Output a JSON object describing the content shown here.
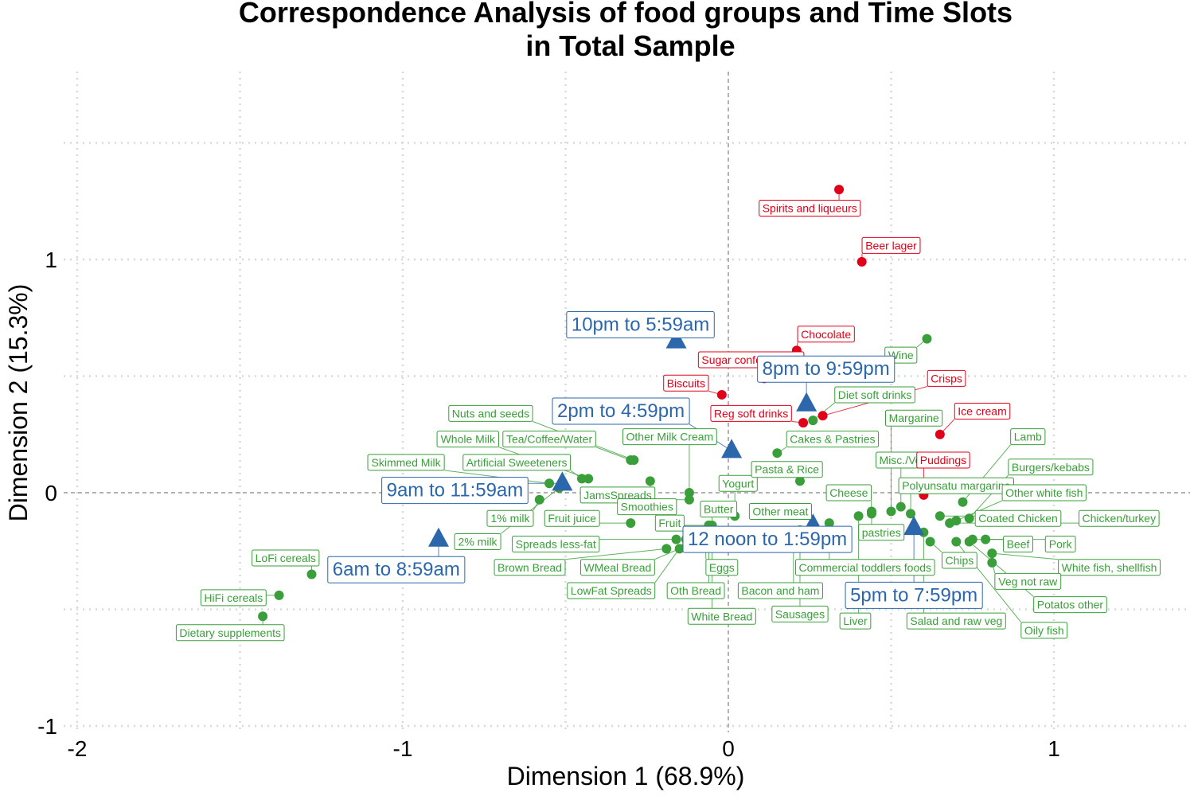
{
  "chart_data": {
    "type": "scatter",
    "title_lines": [
      "Correspondence Analysis of food groups and Time Slots",
      "in Total Sample"
    ],
    "xlabel": "Dimension 1 (68.9%)",
    "ylabel": "Dimension 2 (15.3%)",
    "xlim": [
      -2.05,
      1.42
    ],
    "ylim": [
      -1.04,
      1.64
    ],
    "x_ticks": [
      -2,
      -1,
      0,
      1
    ],
    "x_tick_labels": [
      "-2",
      "-1",
      "0",
      "1"
    ],
    "y_ticks": [
      -1,
      0,
      1
    ],
    "y_tick_labels": [
      "-1",
      "0",
      "1"
    ],
    "x_minor_grid": [
      -2,
      -1.5,
      -1,
      -0.5,
      0.5,
      1,
      1.5
    ],
    "y_minor_grid": [
      -0.5,
      0.5,
      1,
      1.5
    ],
    "colors": {
      "green": "#3a9e3a",
      "red": "#e0001a",
      "blue": "#2c66ab",
      "grid": "#d8d8d8",
      "zero": "#666666"
    },
    "series": [
      {
        "group": "green",
        "points": [
          {
            "label": "LoFi cereals",
            "x": -1.28,
            "y": -0.35,
            "lx": -1.36,
            "ly": -0.28
          },
          {
            "label": "HiFi cereals",
            "x": -1.38,
            "y": -0.44,
            "lx": -1.52,
            "ly": -0.45
          },
          {
            "label": "Dietary supplements",
            "x": -1.43,
            "y": -0.53,
            "lx": -1.53,
            "ly": -0.6
          },
          {
            "label": "Nuts and seeds",
            "x": -0.29,
            "y": 0.14,
            "lx": -0.73,
            "ly": 0.34
          },
          {
            "label": "Whole Milk",
            "x": -0.43,
            "y": 0.06,
            "lx": -0.8,
            "ly": 0.23
          },
          {
            "label": "Tea/Coffee/Water",
            "x": -0.3,
            "y": 0.14,
            "lx": -0.55,
            "ly": 0.23
          },
          {
            "label": "Other Milk Cream",
            "x": -0.12,
            "y": 0.0,
            "lx": -0.18,
            "ly": 0.24
          },
          {
            "label": "Skimmed Milk",
            "x": -0.55,
            "y": 0.04,
            "lx": -0.99,
            "ly": 0.13
          },
          {
            "label": "Artificial Sweeteners",
            "x": -0.45,
            "y": 0.06,
            "lx": -0.65,
            "ly": 0.13
          },
          {
            "label": "JamsSpreads",
            "x": -0.24,
            "y": 0.05,
            "lx": -0.34,
            "ly": -0.01
          },
          {
            "label": "Yogurt",
            "x": 0.02,
            "y": -0.1,
            "lx": 0.03,
            "ly": 0.04
          },
          {
            "label": "Smoothies",
            "x": -0.12,
            "y": -0.03,
            "lx": -0.25,
            "ly": -0.06
          },
          {
            "label": "Butter",
            "x": -0.05,
            "y": -0.14,
            "lx": -0.03,
            "ly": -0.07
          },
          {
            "label": "1% milk",
            "x": -0.58,
            "y": -0.03,
            "lx": -0.67,
            "ly": -0.11
          },
          {
            "label": "Fruit juice",
            "x": -0.3,
            "y": -0.13,
            "lx": -0.48,
            "ly": -0.11
          },
          {
            "label": "Fruit",
            "x": -0.06,
            "y": -0.14,
            "lx": -0.18,
            "ly": -0.13
          },
          {
            "label": "Other meat",
            "x": 0.23,
            "y": -0.09,
            "lx": 0.16,
            "ly": -0.08
          },
          {
            "label": "2% milk",
            "x": -0.52,
            "y": 0.02,
            "lx": -0.77,
            "ly": -0.21
          },
          {
            "label": "Spreads less-fat",
            "x": -0.16,
            "y": -0.2,
            "lx": -0.53,
            "ly": -0.22
          },
          {
            "label": "Brown Bread",
            "x": -0.19,
            "y": -0.24,
            "lx": -0.61,
            "ly": -0.32
          },
          {
            "label": "WMeal Bread",
            "x": -0.15,
            "y": -0.24,
            "lx": -0.34,
            "ly": -0.32
          },
          {
            "label": "LowFat Spreads",
            "x": -0.13,
            "y": -0.2,
            "lx": -0.36,
            "ly": -0.42
          },
          {
            "label": "Eggs",
            "x": -0.07,
            "y": -0.22,
            "lx": -0.02,
            "ly": -0.32
          },
          {
            "label": "Oth Bread",
            "x": -0.06,
            "y": -0.14,
            "lx": -0.1,
            "ly": -0.42
          },
          {
            "label": "White Bread",
            "x": -0.05,
            "y": -0.2,
            "lx": -0.02,
            "ly": -0.53
          },
          {
            "label": "Bacon and ham",
            "x": 0.2,
            "y": -0.23,
            "lx": 0.16,
            "ly": -0.42
          },
          {
            "label": "Sausages",
            "x": 0.22,
            "y": -0.16,
            "lx": 0.22,
            "ly": -0.52
          },
          {
            "label": "Commercial toddlers foods",
            "x": 0.31,
            "y": -0.13,
            "lx": 0.42,
            "ly": -0.32
          },
          {
            "label": "Liver",
            "x": 0.4,
            "y": -0.1,
            "lx": 0.39,
            "ly": -0.55
          },
          {
            "label": "Cheese",
            "x": 0.44,
            "y": -0.09,
            "lx": 0.37,
            "ly": 0.0
          },
          {
            "label": "pastries",
            "x": 0.44,
            "y": -0.08,
            "lx": 0.47,
            "ly": -0.17
          },
          {
            "label": "Wine",
            "x": 0.61,
            "y": 0.66,
            "lx": 0.53,
            "ly": 0.59
          },
          {
            "label": "Diet soft drinks",
            "x": 0.26,
            "y": 0.31,
            "lx": 0.45,
            "ly": 0.42
          },
          {
            "label": "Cakes & Pastries",
            "x": 0.15,
            "y": 0.17,
            "lx": 0.32,
            "ly": 0.23
          },
          {
            "label": "Margarine",
            "x": 0.5,
            "y": -0.08,
            "lx": 0.57,
            "ly": 0.32
          },
          {
            "label": "Pasta & Rice",
            "x": 0.22,
            "y": 0.05,
            "lx": 0.18,
            "ly": 0.1
          },
          {
            "label": "Misc./Vending",
            "x": 0.53,
            "y": -0.06,
            "lx": 0.57,
            "ly": 0.14
          },
          {
            "label": "Polyunsatu margarine",
            "x": 0.56,
            "y": -0.09,
            "lx": 0.7,
            "ly": 0.03
          },
          {
            "label": "Lamb",
            "x": 0.72,
            "y": -0.04,
            "lx": 0.92,
            "ly": 0.24
          },
          {
            "label": "Burgers/kebabs",
            "x": 0.74,
            "y": -0.11,
            "lx": 0.99,
            "ly": 0.11
          },
          {
            "label": "Other white fish",
            "x": 0.7,
            "y": -0.12,
            "lx": 0.97,
            "ly": 0.0
          },
          {
            "label": "Coated Chicken",
            "x": 0.65,
            "y": -0.1,
            "lx": 0.89,
            "ly": -0.11
          },
          {
            "label": "Chicken/turkey",
            "x": 0.68,
            "y": -0.13,
            "lx": 1.2,
            "ly": -0.11
          },
          {
            "label": "Beef",
            "x": 0.75,
            "y": -0.2,
            "lx": 0.89,
            "ly": -0.22
          },
          {
            "label": "Pork",
            "x": 0.79,
            "y": -0.2,
            "lx": 1.02,
            "ly": -0.22
          },
          {
            "label": "Chips",
            "x": 0.62,
            "y": -0.21,
            "lx": 0.71,
            "ly": -0.29
          },
          {
            "label": "White fish, shellfish",
            "x": 0.81,
            "y": -0.26,
            "lx": 1.17,
            "ly": -0.32
          },
          {
            "label": "Veg not raw",
            "x": 0.81,
            "y": -0.3,
            "lx": 0.92,
            "ly": -0.38
          },
          {
            "label": "Potatos other",
            "x": 0.74,
            "y": -0.21,
            "lx": 1.05,
            "ly": -0.48
          },
          {
            "label": "Salad and raw veg",
            "x": 0.6,
            "y": -0.17,
            "lx": 0.7,
            "ly": -0.55
          },
          {
            "label": "Oily fish",
            "x": 0.7,
            "y": -0.21,
            "lx": 0.97,
            "ly": -0.59
          }
        ]
      },
      {
        "group": "red",
        "points": [
          {
            "label": "Spirits and liqueurs",
            "x": 0.34,
            "y": 1.3,
            "lx": 0.25,
            "ly": 1.22
          },
          {
            "label": "Beer lager",
            "x": 0.41,
            "y": 0.99,
            "lx": 0.5,
            "ly": 1.06
          },
          {
            "label": "Chocolate",
            "x": 0.21,
            "y": 0.61,
            "lx": 0.3,
            "ly": 0.68
          },
          {
            "label": "Sugar confectionary",
            "x": 0.11,
            "y": 0.49,
            "lx": 0.07,
            "ly": 0.57
          },
          {
            "label": "Biscuits",
            "x": -0.02,
            "y": 0.42,
            "lx": -0.13,
            "ly": 0.47
          },
          {
            "label": "Reg soft drinks",
            "x": 0.23,
            "y": 0.3,
            "lx": 0.07,
            "ly": 0.34
          },
          {
            "label": "Crisps",
            "x": 0.29,
            "y": 0.33,
            "lx": 0.67,
            "ly": 0.49
          },
          {
            "label": "Ice cream",
            "x": 0.65,
            "y": 0.25,
            "lx": 0.78,
            "ly": 0.35
          },
          {
            "label": "Puddings",
            "x": 0.6,
            "y": -0.01,
            "lx": 0.66,
            "ly": 0.14
          }
        ]
      },
      {
        "group": "blue",
        "points": [
          {
            "label": "10pm to 5:59am",
            "x": -0.16,
            "y": 0.65,
            "lx": -0.27,
            "ly": 0.72
          },
          {
            "label": "8pm to 9:59pm",
            "x": 0.24,
            "y": 0.38,
            "lx": 0.3,
            "ly": 0.53
          },
          {
            "label": "2pm to 4:59pm",
            "x": 0.01,
            "y": 0.18,
            "lx": -0.33,
            "ly": 0.35
          },
          {
            "label": "9am to 11:59am",
            "x": -0.51,
            "y": 0.04,
            "lx": -0.84,
            "ly": 0.01
          },
          {
            "label": "6am to 8:59am",
            "x": -0.89,
            "y": -0.2,
            "lx": -1.02,
            "ly": -0.33
          },
          {
            "label": "12 noon to 1:59pm",
            "x": 0.26,
            "y": -0.14,
            "lx": 0.12,
            "ly": -0.2
          },
          {
            "label": "5pm to 7:59pm",
            "x": 0.57,
            "y": -0.15,
            "lx": 0.57,
            "ly": -0.44
          }
        ]
      }
    ]
  }
}
